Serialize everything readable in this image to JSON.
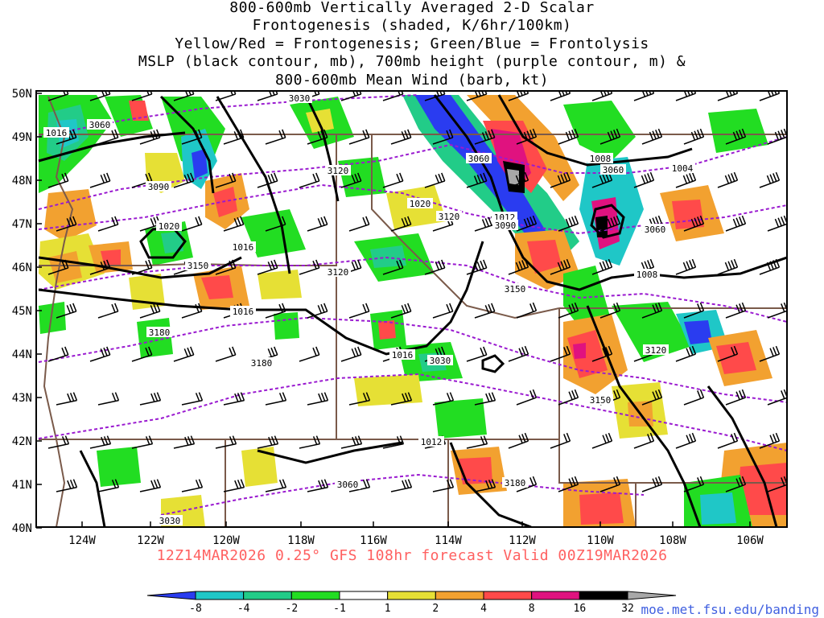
{
  "title_lines": [
    "800-600mb Vertically Averaged 2-D Scalar",
    "Frontogenesis (shaded, K/6hr/100km)",
    "Yellow/Red = Frontogenesis;  Green/Blue = Frontolysis",
    "MSLP (black contour, mb), 700mb height (purple contour, m) &",
    "800-600mb Mean Wind (barb, kt)"
  ],
  "forecast_label": "12Z14MAR2026 0.25° GFS 108hr forecast Valid 00Z19MAR2026",
  "credit": "moe.met.fsu.edu/banding",
  "lat_labels": [
    "50N",
    "49N",
    "48N",
    "47N",
    "46N",
    "45N",
    "44N",
    "43N",
    "42N",
    "41N",
    "40N"
  ],
  "lon_labels": [
    "124W",
    "122W",
    "120W",
    "118W",
    "116W",
    "114W",
    "112W",
    "110W",
    "108W",
    "106W"
  ],
  "colorbar": {
    "ticks": [
      "-8",
      "-4",
      "-2",
      "-1",
      "1",
      "2",
      "4",
      "8",
      "16",
      "32"
    ],
    "colors": [
      "#2a3cf0",
      "#1fc7c7",
      "#22cc88",
      "#22dd22",
      "#ffffff",
      "#e6e035",
      "#f2a130",
      "#ff4a4a",
      "#e0127f",
      "#000000",
      "#a8a8a8"
    ]
  },
  "mslp_labels": [
    "1016",
    "1020",
    "1016",
    "1016",
    "1016",
    "1012",
    "1020",
    "1012",
    "1008",
    "1008",
    "1004"
  ],
  "height_labels": [
    "3030",
    "3060",
    "3090",
    "3120",
    "3150",
    "3180",
    "3180",
    "3060",
    "3030",
    "3090",
    "3060",
    "3120",
    "3120",
    "3150",
    "3030",
    "3060",
    "3120",
    "3150",
    "3180",
    "3060"
  ],
  "colors": {
    "state_border": "#7a5a4a",
    "height_contour": "#9a1ad0",
    "mslp_contour": "#000000",
    "forecast": "#ff6060",
    "credit": "#4060e0"
  }
}
